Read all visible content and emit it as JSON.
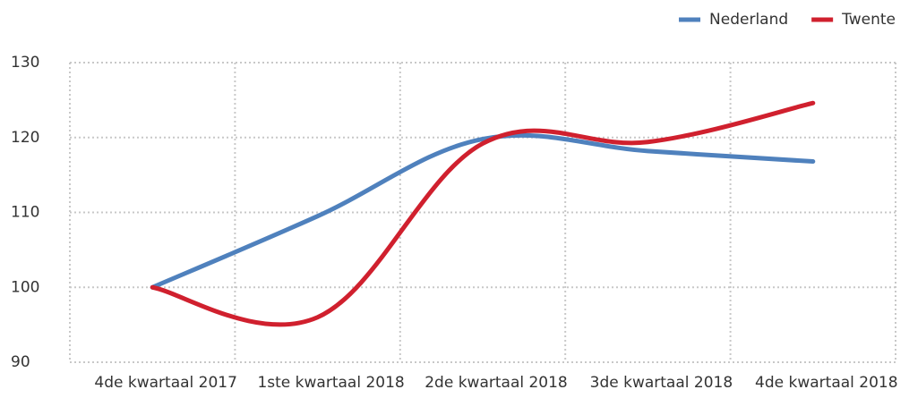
{
  "chart_data": {
    "type": "line",
    "categories": [
      "4de kwartaal 2017",
      "1ste kwartaal 2018",
      "2de kwartaal 2018",
      "3de kwartaal 2018",
      "4de kwartaal 2018"
    ],
    "series": [
      {
        "name": "Nederland",
        "color": "#4f81bd",
        "values": [
          100,
          109.5,
          119.8,
          118.2,
          116.8
        ]
      },
      {
        "name": "Twente",
        "color": "#d0202e",
        "values": [
          100,
          96,
          119.2,
          119.4,
          124.6
        ]
      }
    ],
    "ylim": [
      90,
      130
    ],
    "yticks": [
      90,
      100,
      110,
      120,
      130
    ],
    "grid": true,
    "legend": "top-right"
  }
}
